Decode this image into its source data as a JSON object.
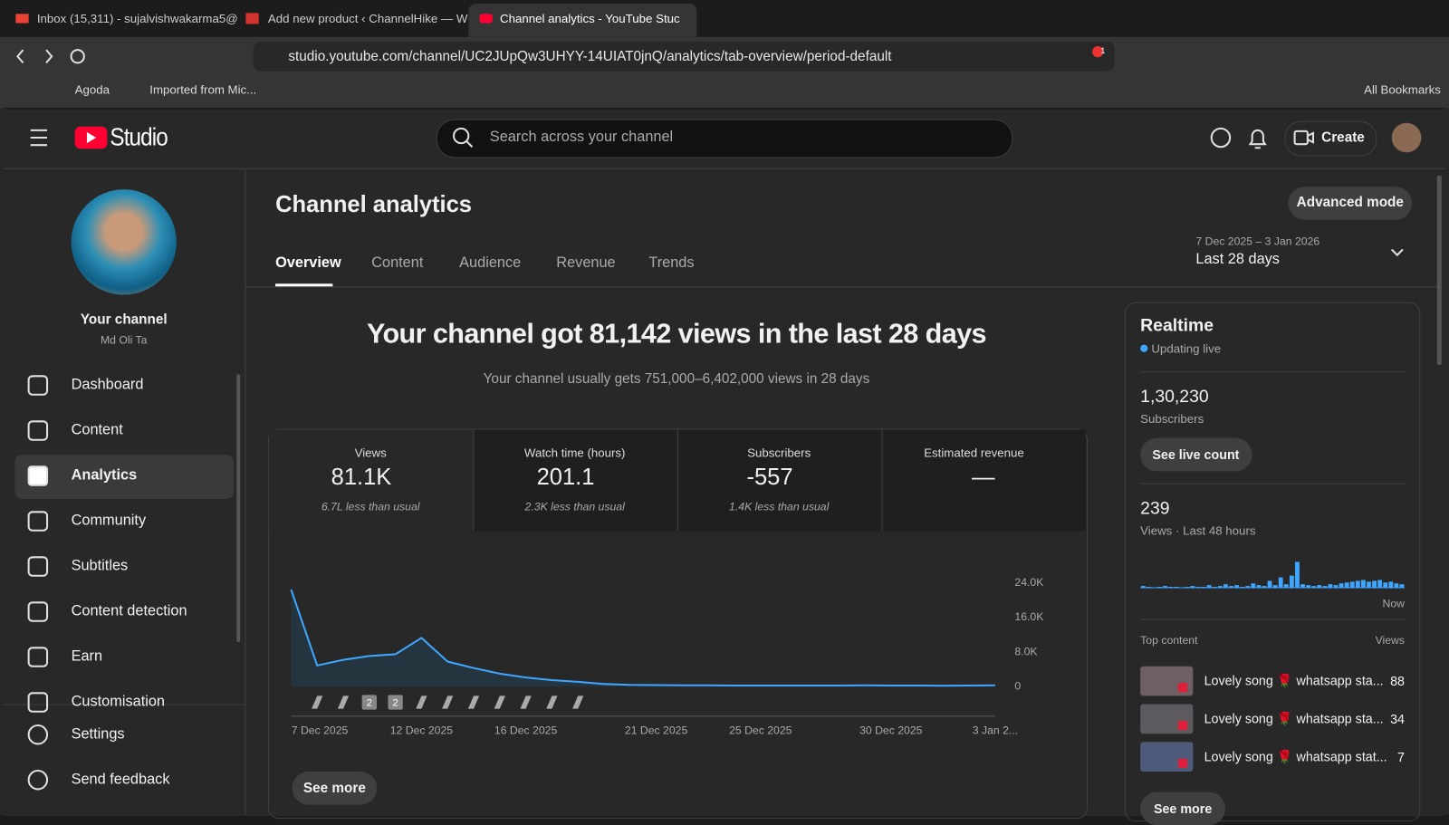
{
  "browser": {
    "tabs": [
      "Inbox (15,311) - sujalvishwakarma5@",
      "Add new product ‹ ChannelHike — W",
      "Channel analytics - YouTube Stuc"
    ],
    "url": "studio.youtube.com/channel/UC2JUpQw3UHYY-14UIAT0jnQ/analytics/tab-overview/period-default",
    "bookmarks": [
      "Agoda",
      "Imported from Mic..."
    ],
    "all_bookmarks": "All Bookmarks",
    "badge": "1"
  },
  "header": {
    "logo": "Studio",
    "search_placeholder": "Search across your channel",
    "create": "Create"
  },
  "sidebar": {
    "channel_title": "Your channel",
    "channel_name": "Md Oli Ta",
    "items": [
      "Dashboard",
      "Content",
      "Analytics",
      "Community",
      "Subtitles",
      "Content detection",
      "Earn",
      "Customisation"
    ],
    "footer_items": [
      "Settings",
      "Send feedback"
    ]
  },
  "page": {
    "title": "Channel analytics",
    "advanced_mode": "Advanced mode",
    "tabs": [
      "Overview",
      "Content",
      "Audience",
      "Revenue",
      "Trends"
    ],
    "date_range": "7 Dec 2025 – 3 Jan 2026",
    "period": "Last 28 days",
    "headline": "Your channel got 81,142 views in the last 28 days",
    "subline": "Your channel usually gets 751,000–6,402,000 views in 28 days",
    "see_more": "See more"
  },
  "metrics": [
    {
      "label": "Views",
      "value": "81.1K",
      "note": "6.7L less than usual"
    },
    {
      "label": "Watch time (hours)",
      "value": "201.1",
      "note": "2.3K less than usual"
    },
    {
      "label": "Subscribers",
      "value": "-557",
      "note": "1.4K less than usual"
    },
    {
      "label": "Estimated revenue",
      "value": "—"
    }
  ],
  "chart_data": {
    "type": "line",
    "categories": [
      "7 Dec 2025",
      null,
      null,
      null,
      null,
      "12 Dec 2025",
      null,
      null,
      null,
      "16 Dec 2025",
      null,
      null,
      null,
      null,
      "21 Dec 2025",
      null,
      null,
      null,
      "25 Dec 2025",
      null,
      null,
      null,
      null,
      "30 Dec 2025",
      null,
      null,
      null,
      "3 Jan 2..."
    ],
    "values": [
      22500,
      4900,
      6200,
      7100,
      7500,
      11300,
      5800,
      4300,
      3000,
      2100,
      1500,
      1100,
      600,
      400,
      350,
      300,
      300,
      250,
      250,
      250,
      250,
      250,
      300,
      250,
      250,
      200,
      250,
      300
    ],
    "color": "#3ea6ff",
    "ylim": [
      0,
      24000
    ],
    "yticks": [
      0,
      {
        "value": 8000,
        "label": "8.0K"
      },
      {
        "value": 16000,
        "label": "16.0K"
      },
      {
        "value": 24000,
        "label": "24.0K"
      }
    ],
    "grid": false,
    "badges": [
      "2",
      "2"
    ]
  },
  "realtime": {
    "title": "Realtime",
    "status": "Updating live",
    "subscribers": "1,30,230",
    "subscribers_label": "Subscribers",
    "see_live": "See live count",
    "views": "239",
    "views_label": "Views · Last 48 hours",
    "bars": [
      2,
      1,
      0,
      1,
      2,
      1,
      1,
      0,
      1,
      2,
      1,
      1,
      3,
      1,
      2,
      4,
      2,
      3,
      1,
      2,
      5,
      3,
      2,
      8,
      3,
      12,
      4,
      14,
      30,
      4,
      3,
      2,
      3,
      2,
      4,
      3,
      5,
      6,
      7,
      8,
      9,
      7,
      8,
      9,
      6,
      7,
      5,
      4
    ],
    "now": "Now",
    "top_content": "Top content",
    "views_col": "Views",
    "items": [
      {
        "title": "Lovely song 🌹 whatsapp sta...",
        "views": 88
      },
      {
        "title": "Lovely song 🌹 whatsapp sta...",
        "views": 34
      },
      {
        "title": "Lovely song 🌹 whatsapp stat...",
        "views": 7
      }
    ],
    "see_more": "See more"
  }
}
